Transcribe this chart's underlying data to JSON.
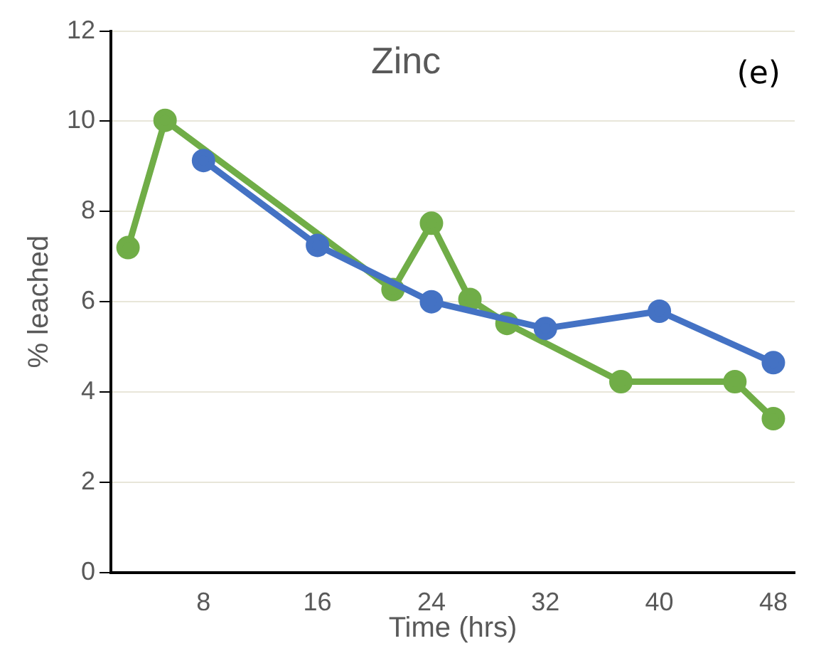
{
  "chart_data": {
    "type": "line",
    "title": "Zinc",
    "xlabel": "Time (hrs)",
    "ylabel": "% leached",
    "annotations": [
      "(e)"
    ],
    "series": [
      {
        "color": "#4472c4",
        "x": [
          8,
          16,
          24,
          32,
          40,
          48
        ],
        "values": [
          9.13,
          7.25,
          6.0,
          5.41,
          5.79,
          4.65
        ]
      },
      {
        "color": "#70ad47",
        "x": [
          2.7,
          5.3,
          21.3,
          24,
          26.7,
          29.3,
          37.3,
          45.3,
          48
        ],
        "values": [
          7.2,
          10.02,
          6.27,
          7.74,
          6.05,
          5.52,
          4.23,
          4.23,
          3.41
        ]
      }
    ],
    "xlim": [
      1.5,
      49.5
    ],
    "xticks": [
      8,
      16,
      24,
      32,
      40,
      48
    ],
    "ylim": [
      0,
      12
    ],
    "yticks": [
      0,
      2,
      4,
      6,
      8,
      10,
      12
    ],
    "grid": "y",
    "legend": false,
    "marker": "circle",
    "line_style": "solid"
  }
}
